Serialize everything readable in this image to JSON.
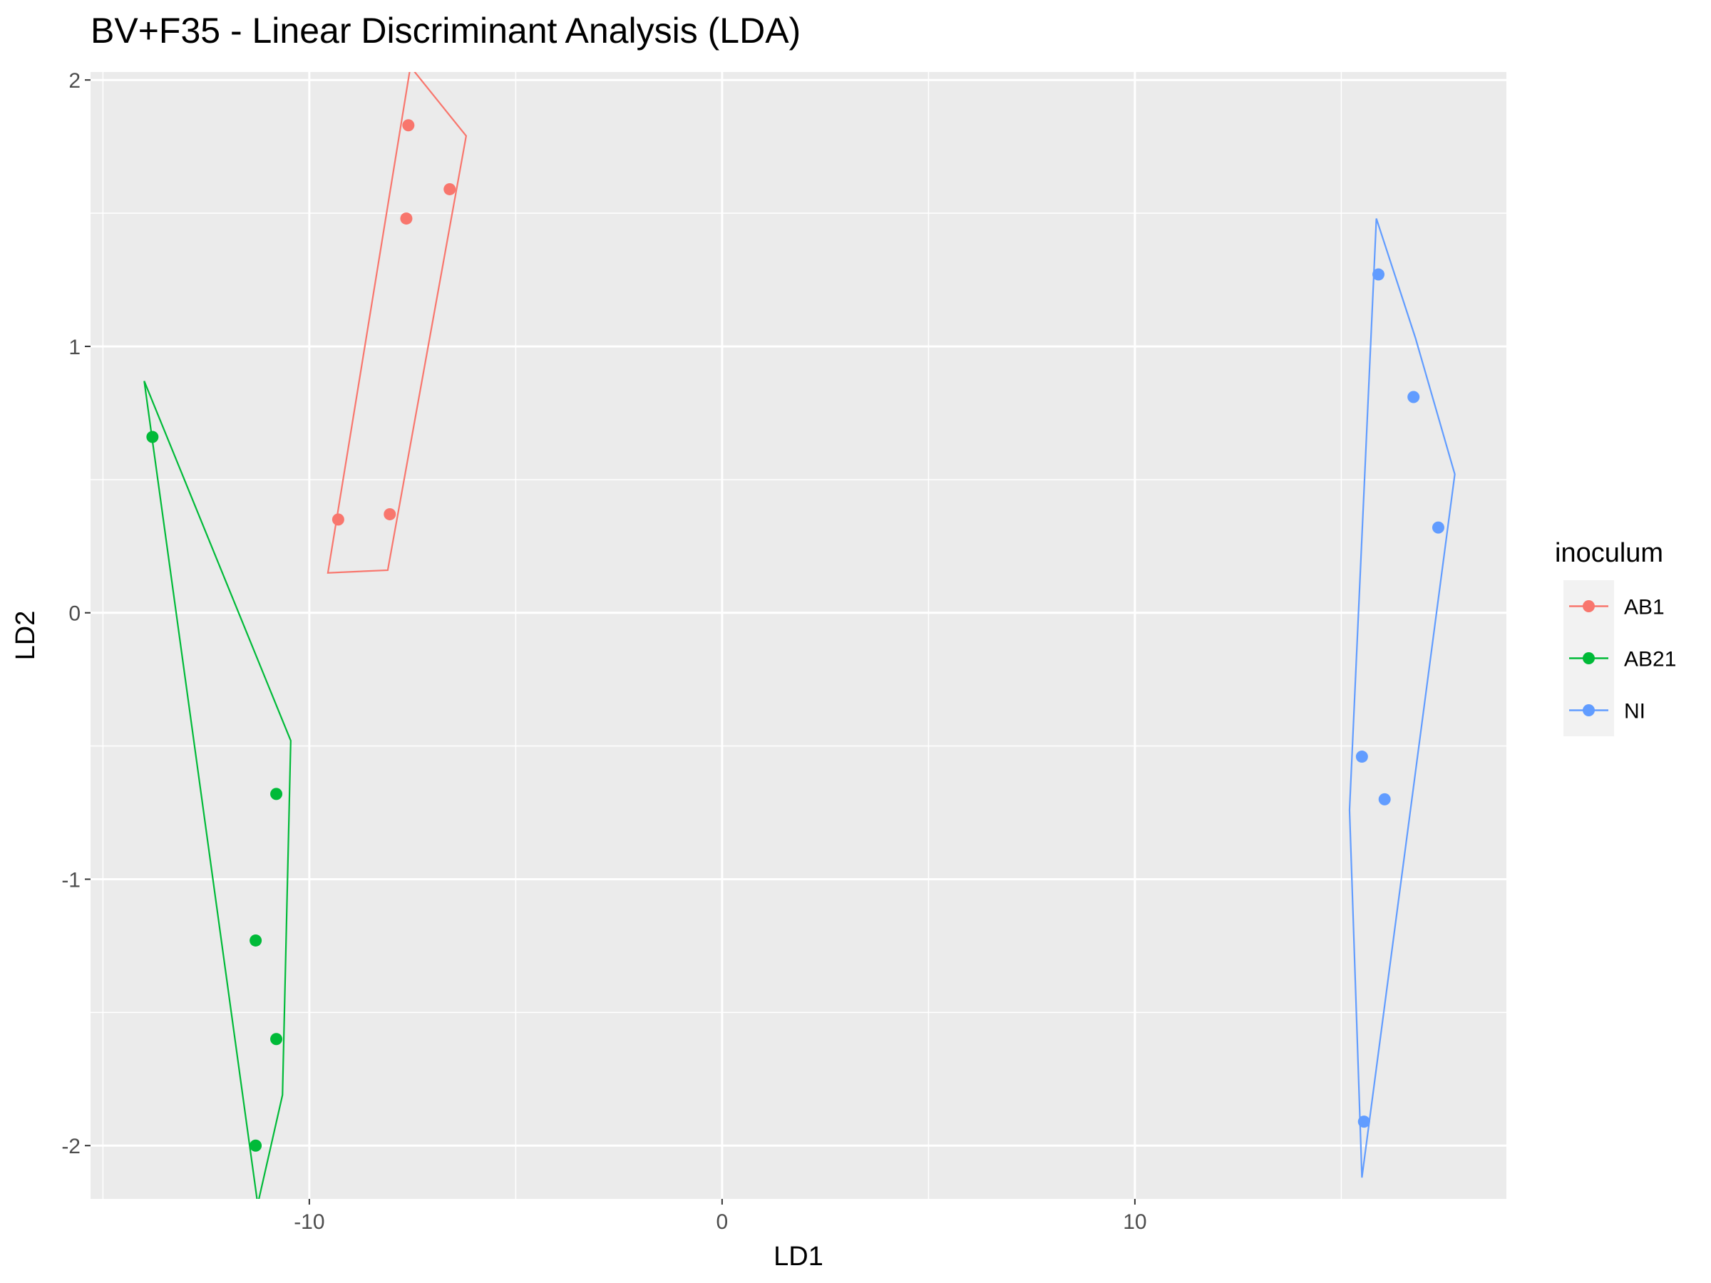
{
  "chart_data": {
    "type": "scatter",
    "title": "BV+F35 - Linear Discriminant Analysis (LDA)",
    "xlabel": "LD1",
    "ylabel": "LD2",
    "xlim": [
      -15.3,
      19.0
    ],
    "ylim": [
      -2.2,
      2.03
    ],
    "x_ticks": [
      -10,
      0,
      10
    ],
    "x_tick_labels": [
      "-10",
      "0",
      "10"
    ],
    "y_ticks": [
      -2,
      -1,
      0,
      1,
      2
    ],
    "y_tick_labels": [
      "-2",
      "-1",
      "0",
      "1",
      "2"
    ],
    "x_minor_ticks": [
      -15,
      -5,
      5,
      15
    ],
    "y_minor_ticks": [
      -1.5,
      -0.5,
      0.5,
      1.5
    ],
    "grid": true,
    "legend": {
      "title": "inoculum",
      "position": "right"
    },
    "series": [
      {
        "name": "AB1",
        "color": "#F8766D",
        "points": [
          [
            -7.6,
            1.83
          ],
          [
            -6.6,
            1.59
          ],
          [
            -7.65,
            1.48
          ],
          [
            -9.3,
            0.35
          ],
          [
            -8.05,
            0.37
          ]
        ],
        "hull": [
          [
            -7.55,
            2.05
          ],
          [
            -6.2,
            1.79
          ],
          [
            -8.1,
            0.16
          ],
          [
            -9.55,
            0.15
          ]
        ]
      },
      {
        "name": "AB21",
        "color": "#00BA38",
        "points": [
          [
            -13.8,
            0.66
          ],
          [
            -10.8,
            -0.68
          ],
          [
            -11.3,
            -1.23
          ],
          [
            -10.8,
            -1.6
          ],
          [
            -11.3,
            -2.0
          ]
        ],
        "hull": [
          [
            -14.0,
            0.87
          ],
          [
            -10.45,
            -0.48
          ],
          [
            -10.65,
            -1.81
          ],
          [
            -11.25,
            -2.22
          ]
        ]
      },
      {
        "name": "NI",
        "color": "#619CFF",
        "points": [
          [
            15.9,
            1.27
          ],
          [
            16.75,
            0.81
          ],
          [
            17.35,
            0.32
          ],
          [
            15.5,
            -0.54
          ],
          [
            16.05,
            -0.7
          ],
          [
            15.55,
            -1.91
          ]
        ],
        "hull": [
          [
            15.85,
            1.48
          ],
          [
            16.8,
            1.03
          ],
          [
            17.75,
            0.52
          ],
          [
            15.5,
            -2.12
          ],
          [
            15.2,
            -0.74
          ]
        ]
      }
    ]
  }
}
